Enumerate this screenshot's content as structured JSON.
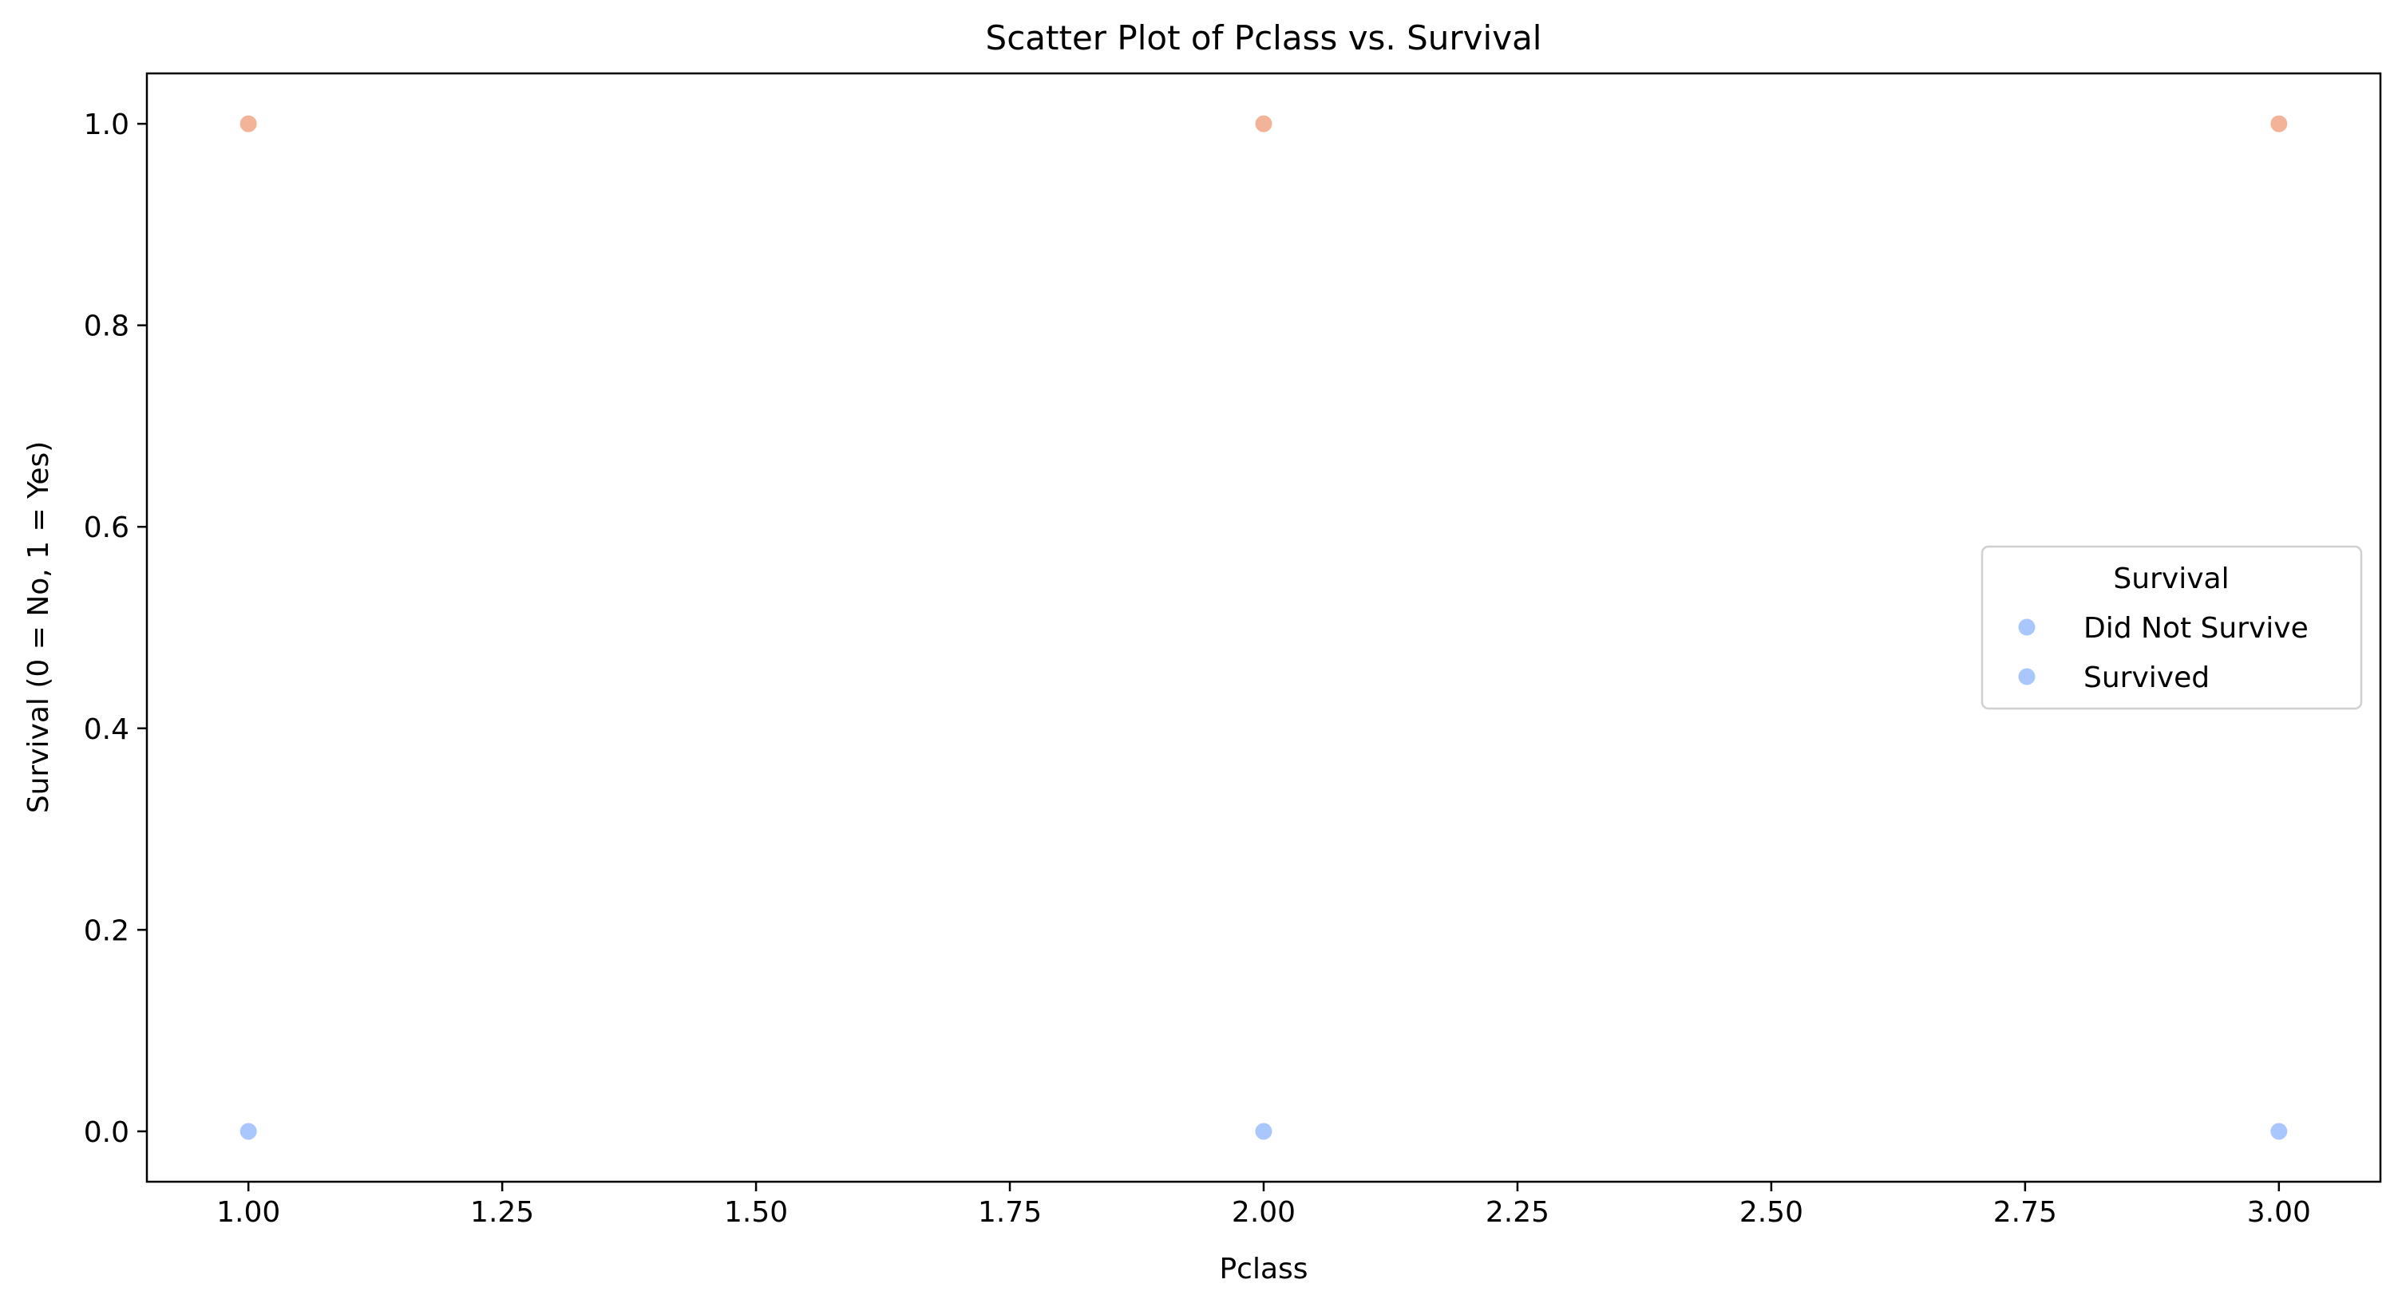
{
  "chart_data": {
    "type": "scatter",
    "title": "Scatter Plot of Pclass vs. Survival",
    "xlabel": "Pclass",
    "ylabel": "Survival (0 = No, 1 = Yes)",
    "xlim": [
      0.9,
      3.1
    ],
    "ylim": [
      -0.05,
      1.05
    ],
    "x_ticks": [
      1.0,
      1.25,
      1.5,
      1.75,
      2.0,
      2.25,
      2.5,
      2.75,
      3.0
    ],
    "x_tick_labels": [
      "1.00",
      "1.25",
      "1.50",
      "1.75",
      "2.00",
      "2.25",
      "2.50",
      "2.75",
      "3.00"
    ],
    "y_ticks": [
      0.0,
      0.2,
      0.4,
      0.6,
      0.8,
      1.0
    ],
    "y_tick_labels": [
      "0.0",
      "0.2",
      "0.4",
      "0.6",
      "0.8",
      "1.0"
    ],
    "grid": false,
    "points": [
      {
        "x": 1,
        "y": 0,
        "color": "#aac7fd"
      },
      {
        "x": 2,
        "y": 0,
        "color": "#aac7fd"
      },
      {
        "x": 3,
        "y": 0,
        "color": "#aac7fd"
      },
      {
        "x": 1,
        "y": 1,
        "color": "#f2b398"
      },
      {
        "x": 2,
        "y": 1,
        "color": "#f2b398"
      },
      {
        "x": 3,
        "y": 1,
        "color": "#f2b398"
      }
    ],
    "legend": {
      "title": "Survival",
      "placement": "center-right",
      "entries": [
        {
          "label": "Did Not Survive",
          "color": "#aac7fd"
        },
        {
          "label": "Survived",
          "color": "#aac7fd"
        }
      ]
    }
  }
}
